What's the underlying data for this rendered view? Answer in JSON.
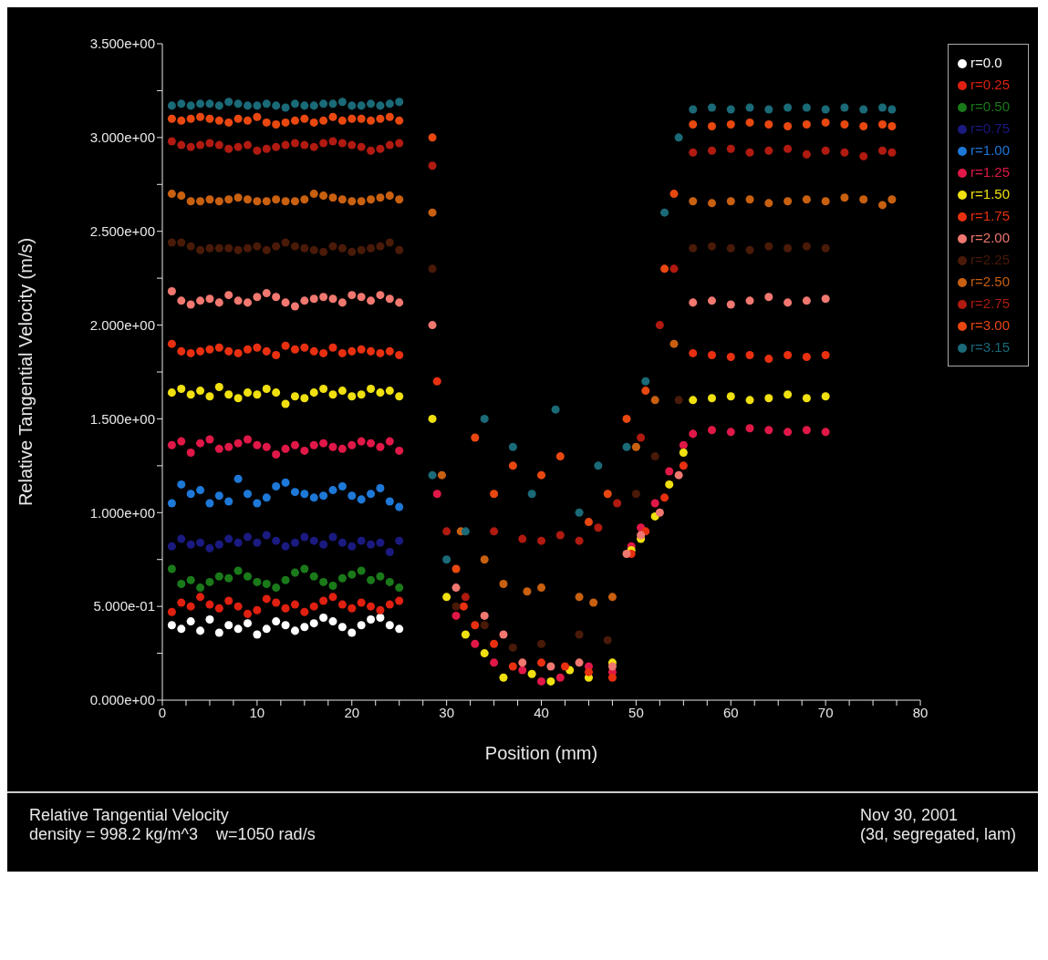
{
  "chart_data": {
    "type": "scatter",
    "title": "Relative Tangential Velocity",
    "subtitle": "density = 998.2 kg/m^3    w=1050 rad/s",
    "annotations": [
      "Nov 30, 2001",
      "(3d, segregated, lam)"
    ],
    "xlabel": "Position (mm)",
    "ylabel": "Relative Tangential Velocity (m/s)",
    "xlim": [
      0,
      80
    ],
    "ylim": [
      0,
      3.5
    ],
    "xticks": [
      0,
      {
        "value": 2.5,
        "label": null
      },
      {
        "value": 5,
        "label": null
      },
      {
        "value": 7.5,
        "label": null
      },
      10,
      {
        "value": 12.5,
        "label": null
      },
      {
        "value": 15,
        "label": null
      },
      {
        "value": 17.5,
        "label": null
      },
      20,
      {
        "value": 22.5,
        "label": null
      },
      {
        "value": 25,
        "label": null
      },
      {
        "value": 27.5,
        "label": null
      },
      30,
      {
        "value": 32.5,
        "label": null
      },
      {
        "value": 35,
        "label": null
      },
      {
        "value": 37.5,
        "label": null
      },
      40,
      {
        "value": 42.5,
        "label": null
      },
      {
        "value": 45,
        "label": null
      },
      {
        "value": 47.5,
        "label": null
      },
      50,
      {
        "value": 52.5,
        "label": null
      },
      {
        "value": 55,
        "label": null
      },
      {
        "value": 57.5,
        "label": null
      },
      60,
      {
        "value": 62.5,
        "label": null
      },
      {
        "value": 65,
        "label": null
      },
      {
        "value": 67.5,
        "label": null
      },
      70,
      {
        "value": 72.5,
        "label": null
      },
      {
        "value": 75,
        "label": null
      },
      {
        "value": 77.5,
        "label": null
      },
      80
    ],
    "yticks": [
      {
        "value": 0,
        "label": "0.000e+00"
      },
      {
        "value": 0.25,
        "label": null
      },
      {
        "value": 0.5,
        "label": "5.000e-01"
      },
      {
        "value": 0.75,
        "label": null
      },
      {
        "value": 1,
        "label": "1.000e+00"
      },
      {
        "value": 1.25,
        "label": null
      },
      {
        "value": 1.5,
        "label": "1.500e+00"
      },
      {
        "value": 1.75,
        "label": null
      },
      {
        "value": 2,
        "label": "2.000e+00"
      },
      {
        "value": 2.25,
        "label": null
      },
      {
        "value": 2.5,
        "label": "2.500e+00"
      },
      {
        "value": 2.75,
        "label": null
      },
      {
        "value": 3,
        "label": "3.000e+00"
      },
      {
        "value": 3.25,
        "label": null
      },
      {
        "value": 3.5,
        "label": "3.500e+00"
      }
    ],
    "grid": false,
    "legend": "right",
    "marker": "circle",
    "series": [
      {
        "name": "r=0.0",
        "color": "#ffffff",
        "x": [
          1,
          2,
          3,
          4,
          5,
          6,
          7,
          8,
          9,
          10,
          11,
          12,
          13,
          14,
          15,
          16,
          17,
          18,
          19,
          20,
          21,
          22,
          23,
          24,
          25
        ],
        "values": [
          0.4,
          0.38,
          0.42,
          0.37,
          0.43,
          0.36,
          0.4,
          0.38,
          0.41,
          0.35,
          0.38,
          0.42,
          0.4,
          0.37,
          0.39,
          0.41,
          0.44,
          0.42,
          0.39,
          0.36,
          0.4,
          0.43,
          0.44,
          0.4,
          0.38
        ]
      },
      {
        "name": "r=0.25",
        "color": "#e02010",
        "x": [
          1,
          2,
          3,
          4,
          5,
          6,
          7,
          8,
          9,
          10,
          11,
          12,
          13,
          14,
          15,
          16,
          17,
          18,
          19,
          20,
          21,
          22,
          23,
          24,
          25
        ],
        "values": [
          0.47,
          0.52,
          0.5,
          0.55,
          0.51,
          0.49,
          0.53,
          0.5,
          0.46,
          0.48,
          0.54,
          0.52,
          0.49,
          0.51,
          0.47,
          0.5,
          0.53,
          0.55,
          0.51,
          0.49,
          0.52,
          0.5,
          0.48,
          0.51,
          0.53
        ]
      },
      {
        "name": "r=0.50",
        "color": "#1a7a1a",
        "x": [
          1,
          2,
          3,
          4,
          5,
          6,
          7,
          8,
          9,
          10,
          11,
          12,
          13,
          14,
          15,
          16,
          17,
          18,
          19,
          20,
          21,
          22,
          23,
          24,
          25
        ],
        "values": [
          0.7,
          0.62,
          0.64,
          0.6,
          0.63,
          0.66,
          0.65,
          0.69,
          0.66,
          0.63,
          0.62,
          0.6,
          0.64,
          0.68,
          0.7,
          0.66,
          0.63,
          0.61,
          0.65,
          0.67,
          0.69,
          0.64,
          0.66,
          0.63,
          0.6
        ]
      },
      {
        "name": "r=0.75",
        "color": "#1a1a80",
        "x": [
          1,
          2,
          3,
          4,
          5,
          6,
          7,
          8,
          9,
          10,
          11,
          12,
          13,
          14,
          15,
          16,
          17,
          18,
          19,
          20,
          21,
          22,
          23,
          24,
          25
        ],
        "values": [
          0.82,
          0.86,
          0.83,
          0.84,
          0.81,
          0.83,
          0.86,
          0.84,
          0.87,
          0.84,
          0.88,
          0.85,
          0.82,
          0.84,
          0.87,
          0.85,
          0.83,
          0.87,
          0.84,
          0.82,
          0.85,
          0.83,
          0.84,
          0.79,
          0.85
        ]
      },
      {
        "name": "r=1.00",
        "color": "#1e78d8",
        "x": [
          1,
          2,
          3,
          4,
          5,
          6,
          7,
          8,
          9,
          10,
          11,
          12,
          13,
          14,
          15,
          16,
          17,
          18,
          19,
          20,
          21,
          22,
          23,
          24,
          25
        ],
        "values": [
          1.05,
          1.15,
          1.1,
          1.12,
          1.05,
          1.09,
          1.06,
          1.18,
          1.1,
          1.05,
          1.08,
          1.14,
          1.16,
          1.11,
          1.1,
          1.08,
          1.09,
          1.12,
          1.14,
          1.09,
          1.07,
          1.1,
          1.13,
          1.06,
          1.03
        ]
      },
      {
        "name": "r=1.25",
        "color": "#e01848",
        "x": [
          1,
          2,
          3,
          4,
          5,
          6,
          7,
          8,
          9,
          10,
          11,
          12,
          13,
          14,
          15,
          16,
          17,
          18,
          19,
          20,
          21,
          22,
          23,
          24,
          25,
          29,
          31,
          33,
          35,
          38,
          40,
          42,
          45,
          47.5,
          49.5,
          50.5,
          52,
          53.5,
          55,
          56,
          58,
          60,
          62,
          64,
          66,
          68,
          70
        ],
        "values": [
          1.36,
          1.38,
          1.32,
          1.37,
          1.39,
          1.34,
          1.35,
          1.37,
          1.39,
          1.36,
          1.35,
          1.31,
          1.34,
          1.36,
          1.33,
          1.36,
          1.37,
          1.35,
          1.34,
          1.36,
          1.38,
          1.37,
          1.35,
          1.38,
          1.33,
          1.1,
          0.45,
          0.3,
          0.2,
          0.16,
          0.1,
          0.12,
          0.18,
          0.15,
          0.82,
          0.92,
          1.05,
          1.22,
          1.36,
          1.42,
          1.44,
          1.43,
          1.45,
          1.44,
          1.43,
          1.44,
          1.43
        ]
      },
      {
        "name": "r=1.50",
        "color": "#f0e010",
        "x": [
          1,
          2,
          3,
          4,
          5,
          6,
          7,
          8,
          9,
          10,
          11,
          12,
          13,
          14,
          15,
          16,
          17,
          18,
          19,
          20,
          21,
          22,
          23,
          24,
          25,
          28.5,
          30,
          32,
          34,
          36,
          39,
          41,
          43,
          45,
          47.5,
          49.5,
          50.5,
          52,
          53.5,
          55,
          56,
          58,
          60,
          62,
          64,
          66,
          68,
          70
        ],
        "values": [
          1.64,
          1.66,
          1.63,
          1.65,
          1.62,
          1.67,
          1.63,
          1.61,
          1.64,
          1.63,
          1.66,
          1.64,
          1.58,
          1.62,
          1.61,
          1.64,
          1.66,
          1.63,
          1.65,
          1.62,
          1.63,
          1.66,
          1.64,
          1.65,
          1.62,
          1.5,
          0.55,
          0.35,
          0.25,
          0.12,
          0.14,
          0.1,
          0.16,
          0.12,
          0.2,
          0.8,
          0.86,
          0.98,
          1.15,
          1.32,
          1.6,
          1.61,
          1.62,
          1.6,
          1.61,
          1.63,
          1.61,
          1.62
        ]
      },
      {
        "name": "r=1.75",
        "color": "#e83010",
        "x": [
          1,
          2,
          3,
          4,
          5,
          6,
          7,
          8,
          9,
          10,
          11,
          12,
          13,
          14,
          15,
          16,
          17,
          18,
          19,
          20,
          21,
          22,
          23,
          24,
          25,
          29,
          31.8,
          33,
          35,
          37,
          40,
          42.5,
          45,
          47.5,
          49.5,
          51,
          53,
          55,
          56,
          58,
          60,
          62,
          64,
          66,
          68,
          70
        ],
        "values": [
          1.9,
          1.86,
          1.85,
          1.86,
          1.87,
          1.88,
          1.86,
          1.85,
          1.87,
          1.88,
          1.86,
          1.84,
          1.89,
          1.87,
          1.88,
          1.86,
          1.85,
          1.88,
          1.85,
          1.86,
          1.87,
          1.86,
          1.85,
          1.86,
          1.84,
          1.7,
          0.5,
          0.4,
          0.3,
          0.18,
          0.2,
          0.18,
          0.15,
          0.12,
          0.78,
          0.9,
          1.08,
          1.25,
          1.85,
          1.84,
          1.83,
          1.84,
          1.82,
          1.84,
          1.83,
          1.84
        ]
      },
      {
        "name": "r=2.00",
        "color": "#f07870",
        "x": [
          1,
          2,
          3,
          4,
          5,
          6,
          7,
          8,
          9,
          10,
          11,
          12,
          13,
          14,
          15,
          16,
          17,
          18,
          19,
          20,
          21,
          22,
          23,
          24,
          25,
          28.5,
          31,
          34,
          36,
          38,
          41,
          44,
          47.5,
          49,
          50.5,
          52.5,
          54.5,
          56,
          58,
          60,
          62,
          64,
          66,
          68,
          70
        ],
        "values": [
          2.18,
          2.13,
          2.11,
          2.13,
          2.14,
          2.12,
          2.16,
          2.13,
          2.12,
          2.15,
          2.17,
          2.15,
          2.12,
          2.1,
          2.13,
          2.14,
          2.15,
          2.14,
          2.12,
          2.16,
          2.15,
          2.13,
          2.16,
          2.14,
          2.12,
          2.0,
          0.6,
          0.45,
          0.35,
          0.2,
          0.18,
          0.2,
          0.18,
          0.78,
          0.88,
          1.0,
          1.2,
          2.12,
          2.13,
          2.11,
          2.13,
          2.15,
          2.12,
          2.13,
          2.14
        ]
      },
      {
        "name": "r=2.25",
        "color": "#4a1a08",
        "x": [
          1,
          2,
          3,
          4,
          5,
          6,
          7,
          8,
          9,
          10,
          11,
          12,
          13,
          14,
          15,
          16,
          17,
          18,
          19,
          20,
          21,
          22,
          23,
          24,
          25,
          28.5,
          31,
          34,
          37,
          40,
          44,
          47,
          50,
          52,
          54.5,
          56,
          58,
          60,
          62,
          64,
          66,
          68,
          70
        ],
        "values": [
          2.44,
          2.44,
          2.42,
          2.4,
          2.41,
          2.41,
          2.41,
          2.4,
          2.41,
          2.42,
          2.4,
          2.42,
          2.44,
          2.42,
          2.41,
          2.4,
          2.39,
          2.42,
          2.41,
          2.39,
          2.4,
          2.41,
          2.42,
          2.44,
          2.4,
          2.3,
          0.5,
          0.4,
          0.28,
          0.3,
          0.35,
          0.32,
          1.1,
          1.3,
          1.6,
          2.41,
          2.42,
          2.41,
          2.4,
          2.42,
          2.41,
          2.42,
          2.41
        ]
      },
      {
        "name": "r=2.50",
        "color": "#c86010",
        "x": [
          1,
          2,
          3,
          4,
          5,
          6,
          7,
          8,
          9,
          10,
          11,
          12,
          13,
          14,
          15,
          16,
          17,
          18,
          19,
          20,
          21,
          22,
          23,
          24,
          25,
          28.5,
          29.5,
          31.5,
          34,
          36,
          38.5,
          40,
          44,
          45.5,
          47.5,
          50,
          52,
          54,
          56,
          58,
          60,
          62,
          64,
          66,
          68,
          70,
          72,
          74,
          76,
          77
        ],
        "values": [
          2.7,
          2.69,
          2.66,
          2.66,
          2.67,
          2.66,
          2.67,
          2.68,
          2.67,
          2.66,
          2.66,
          2.67,
          2.66,
          2.66,
          2.67,
          2.7,
          2.69,
          2.68,
          2.67,
          2.66,
          2.66,
          2.67,
          2.68,
          2.69,
          2.67,
          2.6,
          1.2,
          0.9,
          0.75,
          0.62,
          0.58,
          0.6,
          0.55,
          0.52,
          0.55,
          1.35,
          1.6,
          1.9,
          2.66,
          2.65,
          2.66,
          2.67,
          2.65,
          2.66,
          2.67,
          2.66,
          2.68,
          2.67,
          2.64,
          2.67
        ]
      },
      {
        "name": "r=2.75",
        "color": "#b01a10",
        "x": [
          1,
          2,
          3,
          4,
          5,
          6,
          7,
          8,
          9,
          10,
          11,
          12,
          13,
          14,
          15,
          16,
          17,
          18,
          19,
          20,
          21,
          22,
          23,
          24,
          25,
          28.5,
          30,
          32,
          35,
          38,
          40,
          42,
          44,
          46,
          48,
          50.5,
          52.5,
          54,
          56,
          58,
          60,
          62,
          64,
          66,
          68,
          70,
          72,
          74,
          76,
          77
        ],
        "values": [
          2.98,
          2.96,
          2.95,
          2.96,
          2.97,
          2.96,
          2.94,
          2.95,
          2.96,
          2.93,
          2.94,
          2.95,
          2.96,
          2.97,
          2.96,
          2.95,
          2.97,
          2.98,
          2.97,
          2.96,
          2.95,
          2.93,
          2.94,
          2.96,
          2.97,
          2.85,
          0.9,
          0.55,
          0.9,
          0.86,
          0.85,
          0.88,
          0.85,
          0.92,
          1.05,
          1.4,
          2.0,
          2.3,
          2.92,
          2.93,
          2.94,
          2.92,
          2.93,
          2.94,
          2.91,
          2.93,
          2.92,
          2.9,
          2.93,
          2.92
        ]
      },
      {
        "name": "r=3.00",
        "color": "#e84810",
        "x": [
          1,
          2,
          3,
          4,
          5,
          6,
          7,
          8,
          9,
          10,
          11,
          12,
          13,
          14,
          15,
          16,
          17,
          18,
          19,
          20,
          21,
          22,
          23,
          24,
          25,
          28.5,
          31,
          33,
          35,
          37,
          40,
          42,
          45,
          47,
          49,
          51,
          53,
          54,
          56,
          58,
          60,
          62,
          64,
          66,
          68,
          70,
          72,
          74,
          76,
          77
        ],
        "values": [
          3.1,
          3.09,
          3.1,
          3.11,
          3.1,
          3.09,
          3.08,
          3.1,
          3.09,
          3.11,
          3.08,
          3.07,
          3.08,
          3.09,
          3.1,
          3.08,
          3.09,
          3.11,
          3.09,
          3.1,
          3.1,
          3.09,
          3.1,
          3.11,
          3.09,
          3.0,
          0.7,
          1.4,
          1.1,
          1.25,
          1.2,
          1.3,
          0.95,
          1.1,
          1.5,
          1.65,
          2.3,
          2.7,
          3.07,
          3.06,
          3.07,
          3.08,
          3.07,
          3.06,
          3.07,
          3.08,
          3.07,
          3.06,
          3.07,
          3.06
        ]
      },
      {
        "name": "r=3.15",
        "color": "#1a6a78",
        "x": [
          1,
          2,
          3,
          4,
          5,
          6,
          7,
          8,
          9,
          10,
          11,
          12,
          13,
          14,
          15,
          16,
          17,
          18,
          19,
          20,
          21,
          22,
          23,
          24,
          25,
          28.5,
          30,
          32,
          34,
          37,
          39,
          41.5,
          44,
          46,
          49,
          51,
          53,
          54.5,
          56,
          58,
          60,
          62,
          64,
          66,
          68,
          70,
          72,
          74,
          76,
          77
        ],
        "values": [
          3.17,
          3.18,
          3.17,
          3.18,
          3.18,
          3.17,
          3.19,
          3.18,
          3.17,
          3.17,
          3.18,
          3.17,
          3.16,
          3.18,
          3.17,
          3.17,
          3.18,
          3.18,
          3.19,
          3.17,
          3.17,
          3.18,
          3.17,
          3.18,
          3.19,
          1.2,
          0.75,
          0.9,
          1.5,
          1.35,
          1.1,
          1.55,
          1.0,
          1.25,
          1.35,
          1.7,
          2.6,
          3.0,
          3.15,
          3.16,
          3.15,
          3.16,
          3.15,
          3.16,
          3.16,
          3.15,
          3.16,
          3.15,
          3.16,
          3.15
        ]
      }
    ]
  }
}
